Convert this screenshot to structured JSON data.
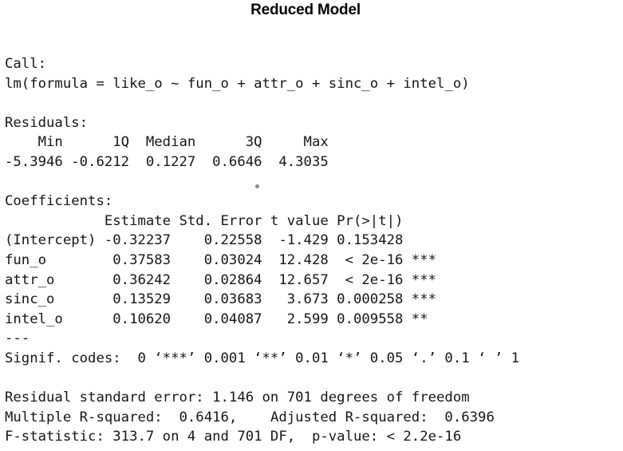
{
  "title": "Reduced Model",
  "output": {
    "call_header": "Call:",
    "call_formula": "lm(formula = like_o ~ fun_o + attr_o + sinc_o + intel_o)",
    "residuals_header": "Residuals:",
    "residuals_labels": "    Min      1Q  Median      3Q     Max ",
    "residuals_values": "-5.3946 -0.6212  0.1227  0.6646  4.3035 ",
    "coefficients_header": "Coefficients:",
    "coef_column_header": "            Estimate Std. Error t value Pr(>|t|)    ",
    "coef_rows": [
      "(Intercept) -0.32237    0.22558  -1.429 0.153428    ",
      "fun_o        0.37583    0.03024  12.428  < 2e-16 ***",
      "attr_o       0.36242    0.02864  12.657  < 2e-16 ***",
      "sinc_o       0.13529    0.03683   3.673 0.000258 ***",
      "intel_o      0.10620    0.04087   2.599 0.009558 ** "
    ],
    "separator": "---",
    "signif_codes": "Signif. codes:  0 ‘***’ 0.001 ‘**’ 0.01 ‘*’ 0.05 ‘.’ 0.1 ‘ ’ 1",
    "residual_se": "Residual standard error: 1.146 on 701 degrees of freedom",
    "r_squared": "Multiple R-squared:  0.6416,\tAdjusted R-squared:  0.6396 ",
    "f_statistic": "F-statistic: 313.7 on 4 and 701 DF,  p-value: < 2.2e-16"
  }
}
